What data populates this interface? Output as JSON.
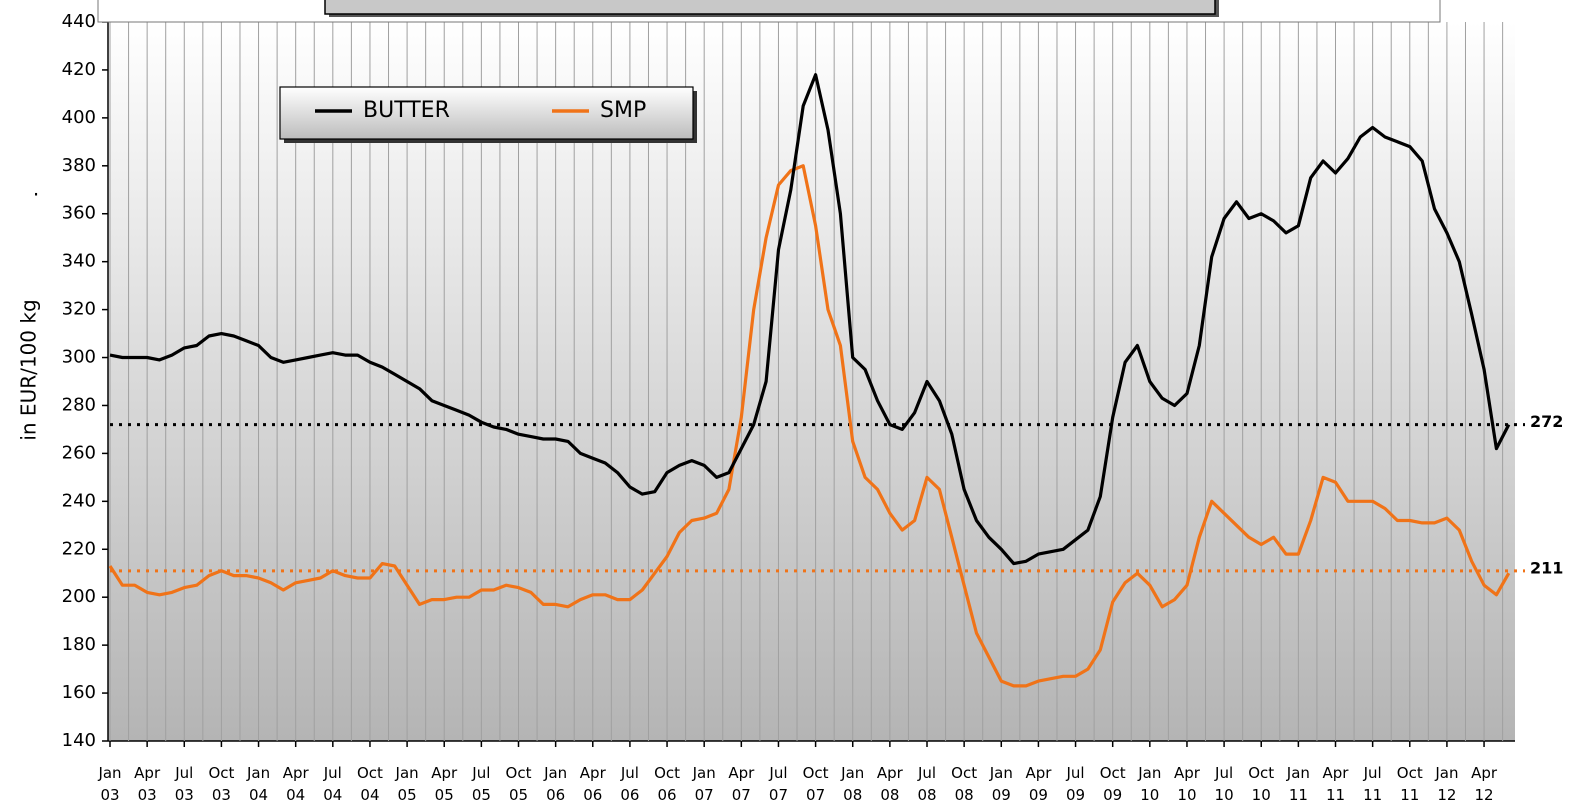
{
  "chart_data": {
    "type": "line",
    "y_label": "in EUR/100 kg",
    "annotation": ".",
    "legend": "top-left",
    "xlim": [
      0,
      113.5
    ],
    "xticks": [
      {
        "value": 0,
        "label": "Jan 03"
      },
      {
        "value": 3,
        "label": "Apr 03"
      },
      {
        "value": 6,
        "label": "Jul 03"
      },
      {
        "value": 9,
        "label": "Oct 03"
      },
      {
        "value": 12,
        "label": "Jan 04"
      },
      {
        "value": 15,
        "label": "Apr 04"
      },
      {
        "value": 18,
        "label": "Jul 04"
      },
      {
        "value": 21,
        "label": "Oct 04"
      },
      {
        "value": 24,
        "label": "Jan 05"
      },
      {
        "value": 27,
        "label": "Apr 05"
      },
      {
        "value": 30,
        "label": "Jul 05"
      },
      {
        "value": 33,
        "label": "Oct 05"
      },
      {
        "value": 36,
        "label": "Jan 06"
      },
      {
        "value": 39,
        "label": "Apr 06"
      },
      {
        "value": 42,
        "label": "Jul 06"
      },
      {
        "value": 45,
        "label": "Oct 06"
      },
      {
        "value": 48,
        "label": "Jan 07"
      },
      {
        "value": 51,
        "label": "Apr 07"
      },
      {
        "value": 54,
        "label": "Jul 07"
      },
      {
        "value": 57,
        "label": "Oct 07"
      },
      {
        "value": 60,
        "label": "Jan 08"
      },
      {
        "value": 63,
        "label": "Apr 08"
      },
      {
        "value": 66,
        "label": "Jul 08"
      },
      {
        "value": 69,
        "label": "Oct 08"
      },
      {
        "value": 72,
        "label": "Jan 09"
      },
      {
        "value": 75,
        "label": "Apr 09"
      },
      {
        "value": 78,
        "label": "Jul 09"
      },
      {
        "value": 81,
        "label": "Oct 09"
      },
      {
        "value": 84,
        "label": "Jan 10"
      },
      {
        "value": 87,
        "label": "Apr 10"
      },
      {
        "value": 90,
        "label": "Jul 10"
      },
      {
        "value": 93,
        "label": "Oct 10"
      },
      {
        "value": 96,
        "label": "Jan 11"
      },
      {
        "value": 99,
        "label": "Apr 11"
      },
      {
        "value": 102,
        "label": "Jul 11"
      },
      {
        "value": 105,
        "label": "Oct 11"
      },
      {
        "value": 108,
        "label": "Jan 12"
      },
      {
        "value": 111,
        "label": "Apr 12"
      }
    ],
    "ylim": [
      140,
      440
    ],
    "yticks": [
      140,
      160,
      180,
      200,
      220,
      240,
      260,
      280,
      300,
      320,
      340,
      360,
      380,
      400,
      420,
      440
    ],
    "x": [
      0,
      1,
      2,
      3,
      4,
      5,
      6,
      7,
      8,
      9,
      10,
      11,
      12,
      13,
      14,
      15,
      16,
      17,
      18,
      19,
      20,
      21,
      22,
      23,
      24,
      25,
      26,
      27,
      28,
      29,
      30,
      31,
      32,
      33,
      34,
      35,
      36,
      37,
      38,
      39,
      40,
      41,
      42,
      43,
      44,
      45,
      46,
      47,
      48,
      49,
      50,
      51,
      52,
      53,
      54,
      55,
      56,
      57,
      58,
      59,
      60,
      61,
      62,
      63,
      64,
      65,
      66,
      67,
      68,
      69,
      70,
      71,
      72,
      73,
      74,
      75,
      76,
      77,
      78,
      79,
      80,
      81,
      82,
      83,
      84,
      85,
      86,
      87,
      88,
      89,
      90,
      91,
      92,
      93,
      94,
      95,
      96,
      97,
      98,
      99,
      100,
      101,
      102,
      103,
      104,
      105,
      106,
      107,
      108,
      109,
      110,
      111,
      112,
      113
    ],
    "series": [
      {
        "name": "BUTTER",
        "color": "#000000",
        "values": [
          301,
          300,
          300,
          300,
          299,
          301,
          304,
          305,
          309,
          310,
          309,
          307,
          305,
          300,
          298,
          299,
          300,
          301,
          302,
          301,
          301,
          298,
          296,
          293,
          290,
          287,
          282,
          280,
          278,
          276,
          273,
          271,
          270,
          268,
          267,
          266,
          266,
          265,
          260,
          258,
          256,
          252,
          246,
          243,
          244,
          252,
          255,
          257,
          255,
          250,
          252,
          262,
          272,
          290,
          345,
          370,
          405,
          418,
          395,
          360,
          300,
          295,
          282,
          272,
          270,
          277,
          290,
          282,
          268,
          245,
          232,
          225,
          220,
          214,
          215,
          218,
          219,
          220,
          224,
          228,
          242,
          275,
          298,
          305,
          290,
          283,
          280,
          285,
          305,
          342,
          358,
          365,
          358,
          360,
          357,
          352,
          355,
          375,
          382,
          377,
          383,
          392,
          396,
          392,
          390,
          388,
          382,
          362,
          352,
          340,
          318,
          295,
          262,
          272
        ]
      },
      {
        "name": "SMP",
        "color": "#f07318",
        "values": [
          213,
          205,
          205,
          202,
          201,
          202,
          204,
          205,
          209,
          211,
          209,
          209,
          208,
          206,
          203,
          206,
          207,
          208,
          211,
          209,
          208,
          208,
          214,
          213,
          205,
          197,
          199,
          199,
          200,
          200,
          203,
          203,
          205,
          204,
          202,
          197,
          197,
          196,
          199,
          201,
          201,
          199,
          199,
          203,
          210,
          217,
          227,
          232,
          233,
          235,
          245,
          275,
          320,
          350,
          372,
          378,
          380,
          355,
          320,
          305,
          265,
          250,
          245,
          235,
          228,
          232,
          250,
          245,
          225,
          205,
          185,
          175,
          165,
          163,
          163,
          165,
          166,
          167,
          167,
          170,
          178,
          198,
          206,
          210,
          205,
          196,
          199,
          205,
          225,
          240,
          235,
          230,
          225,
          222,
          225,
          218,
          218,
          232,
          250,
          248,
          240,
          240,
          240,
          237,
          232,
          232,
          231,
          231,
          233,
          228,
          215,
          205,
          201,
          210
        ]
      }
    ],
    "reference_lines": [
      {
        "value": 272,
        "color": "#000000"
      },
      {
        "value": 211,
        "color": "#f07318"
      }
    ]
  }
}
